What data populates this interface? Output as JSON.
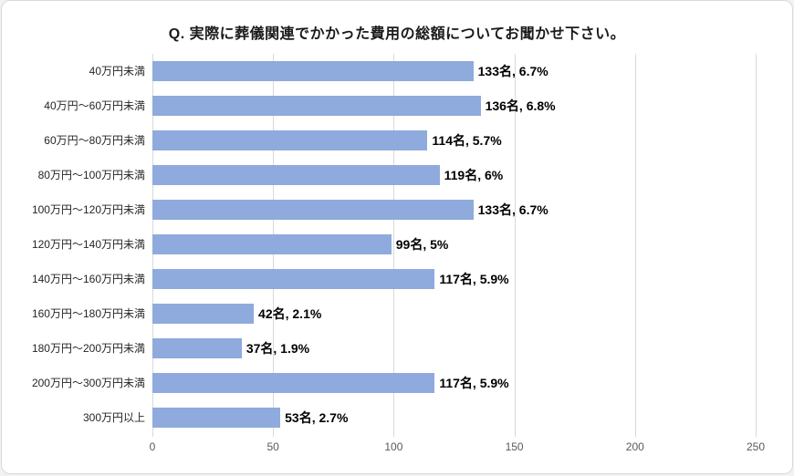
{
  "title": "Q. 実際に葬儀関連でかかった費用の総額についてお聞かせ下さい。",
  "chart_data": {
    "type": "bar",
    "orientation": "horizontal",
    "title": "Q. 実際に葬儀関連でかかった費用の総額についてお聞かせ下さい。",
    "categories": [
      "40万円未満",
      "40万円～60万円未満",
      "60万円～80万円未満",
      "80万円～100万円未満",
      "100万円～120万円未満",
      "120万円～140万円未満",
      "140万円～160万円未満",
      "160万円～180万円未満",
      "180万円～200万円未満",
      "200万円～300万円未満",
      "300万円以上"
    ],
    "values": [
      133,
      136,
      114,
      119,
      133,
      99,
      117,
      42,
      37,
      117,
      53
    ],
    "data_labels": [
      "133名, 6.7%",
      "136名, 6.8%",
      "114名, 5.7%",
      "119名, 6%",
      "133名, 6.7%",
      "99名, 5%",
      "117名, 5.9%",
      "42名, 2.1%",
      "37名, 1.9%",
      "117名, 5.9%",
      "53名, 2.7%"
    ],
    "xlabel": "",
    "ylabel": "",
    "xlim": [
      0,
      250
    ],
    "xticks": [
      0,
      50,
      100,
      150,
      200,
      250
    ],
    "grid": true,
    "legend": "none",
    "bar_color": "#8faadc",
    "gridline_color": "#d9d9d9"
  }
}
